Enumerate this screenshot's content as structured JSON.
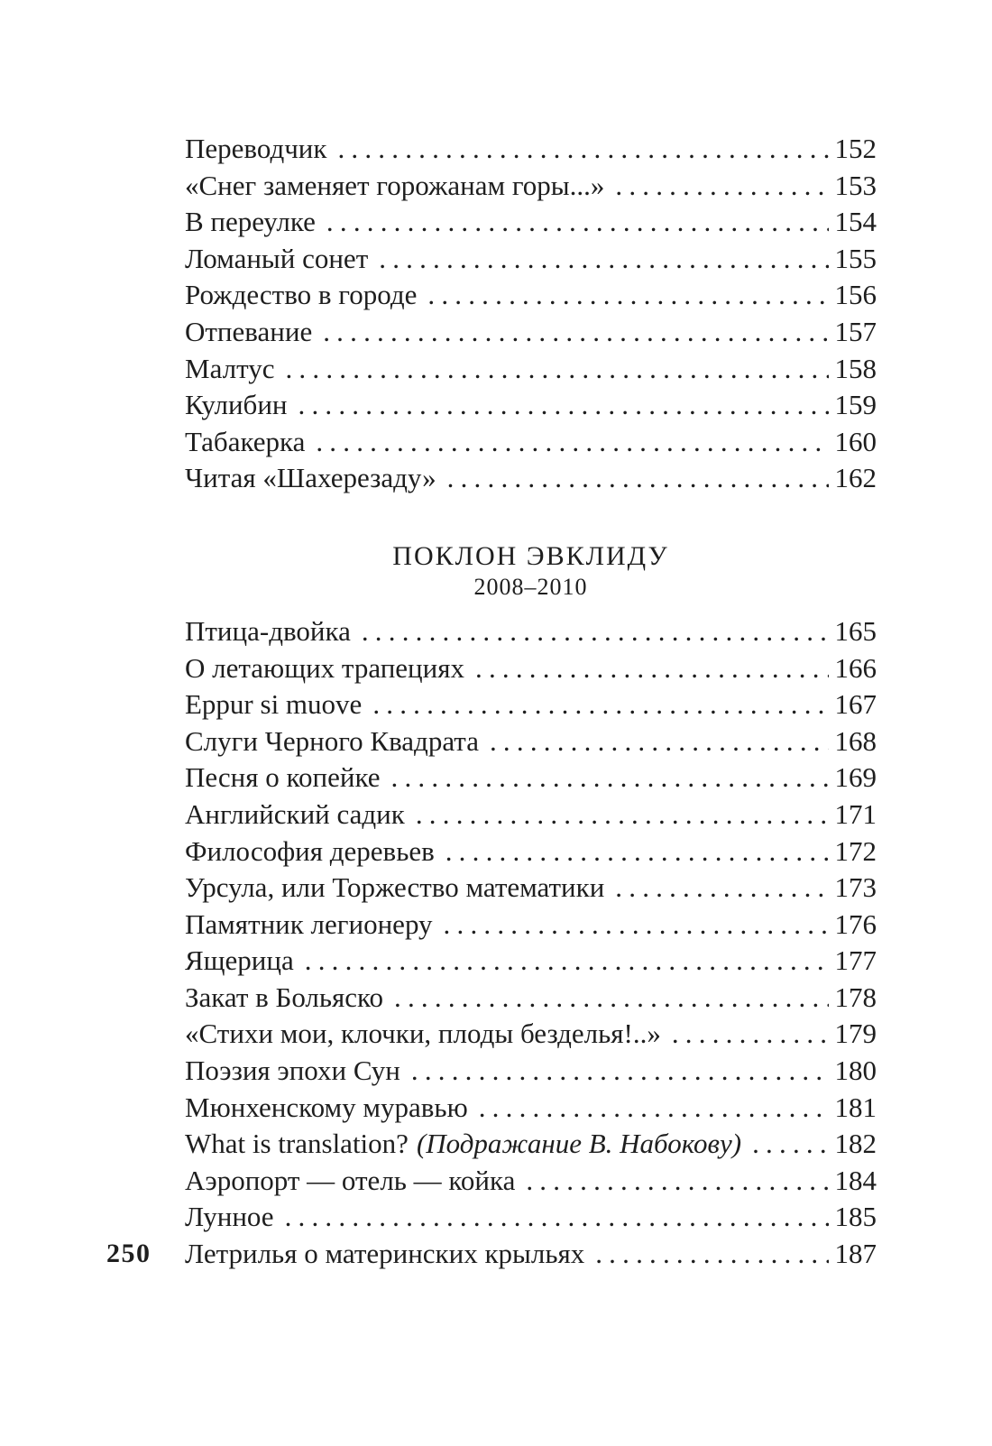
{
  "page": {
    "folio": "250",
    "background_color": "#ffffff",
    "text_color": "#1e1e1e"
  },
  "toc": {
    "sections": [
      {
        "entries": [
          {
            "title": "Переводчик",
            "page": "152"
          },
          {
            "title": "«Снег заменяет горожанам горы...»",
            "page": "153"
          },
          {
            "title": "В переулке",
            "page": "154"
          },
          {
            "title": "Ломаный сонет",
            "page": "155"
          },
          {
            "title": "Рождество в городе",
            "page": "156"
          },
          {
            "title": "Отпевание",
            "page": "157"
          },
          {
            "title": "Малтус",
            "page": "158"
          },
          {
            "title": "Кулибин",
            "page": "159"
          },
          {
            "title": "Табакерка",
            "page": "160"
          },
          {
            "title": "Читая «Шахерезаду»",
            "page": "162"
          }
        ]
      },
      {
        "heading": "ПОКЛОН ЭВКЛИДУ",
        "subheading": "2008–2010",
        "entries": [
          {
            "title": "Птица-двойка",
            "page": "165"
          },
          {
            "title": "О летающих трапециях",
            "page": "166"
          },
          {
            "title": "Eppur si muove",
            "page": "167"
          },
          {
            "title": "Слуги Черного Квадрата",
            "page": "168"
          },
          {
            "title": "Песня о копейке",
            "page": "169"
          },
          {
            "title": "Английский садик",
            "page": "171"
          },
          {
            "title": "Философия деревьев",
            "page": "172"
          },
          {
            "title": "Урсула, или Торжество математики",
            "page": "173"
          },
          {
            "title": "Памятник легионеру",
            "page": "176"
          },
          {
            "title": "Ящерица",
            "page": "177"
          },
          {
            "title": "Закат в Больяско",
            "page": "178"
          },
          {
            "title": "«Стихи мои, клочки, плоды безделья!..»",
            "page": "179"
          },
          {
            "title": "Поэзия эпохи Сун",
            "page": "180"
          },
          {
            "title": "Мюнхенскому муравью",
            "page": "181"
          },
          {
            "title": "What is translation?",
            "annotation": "(Подражание В. Набокову)",
            "page": "182"
          },
          {
            "title": "Аэропорт — отель — койка",
            "page": "184"
          },
          {
            "title": "Лунное",
            "page": "185"
          },
          {
            "title": "Летрилья о материнских крыльях",
            "page": "187"
          }
        ]
      }
    ]
  }
}
